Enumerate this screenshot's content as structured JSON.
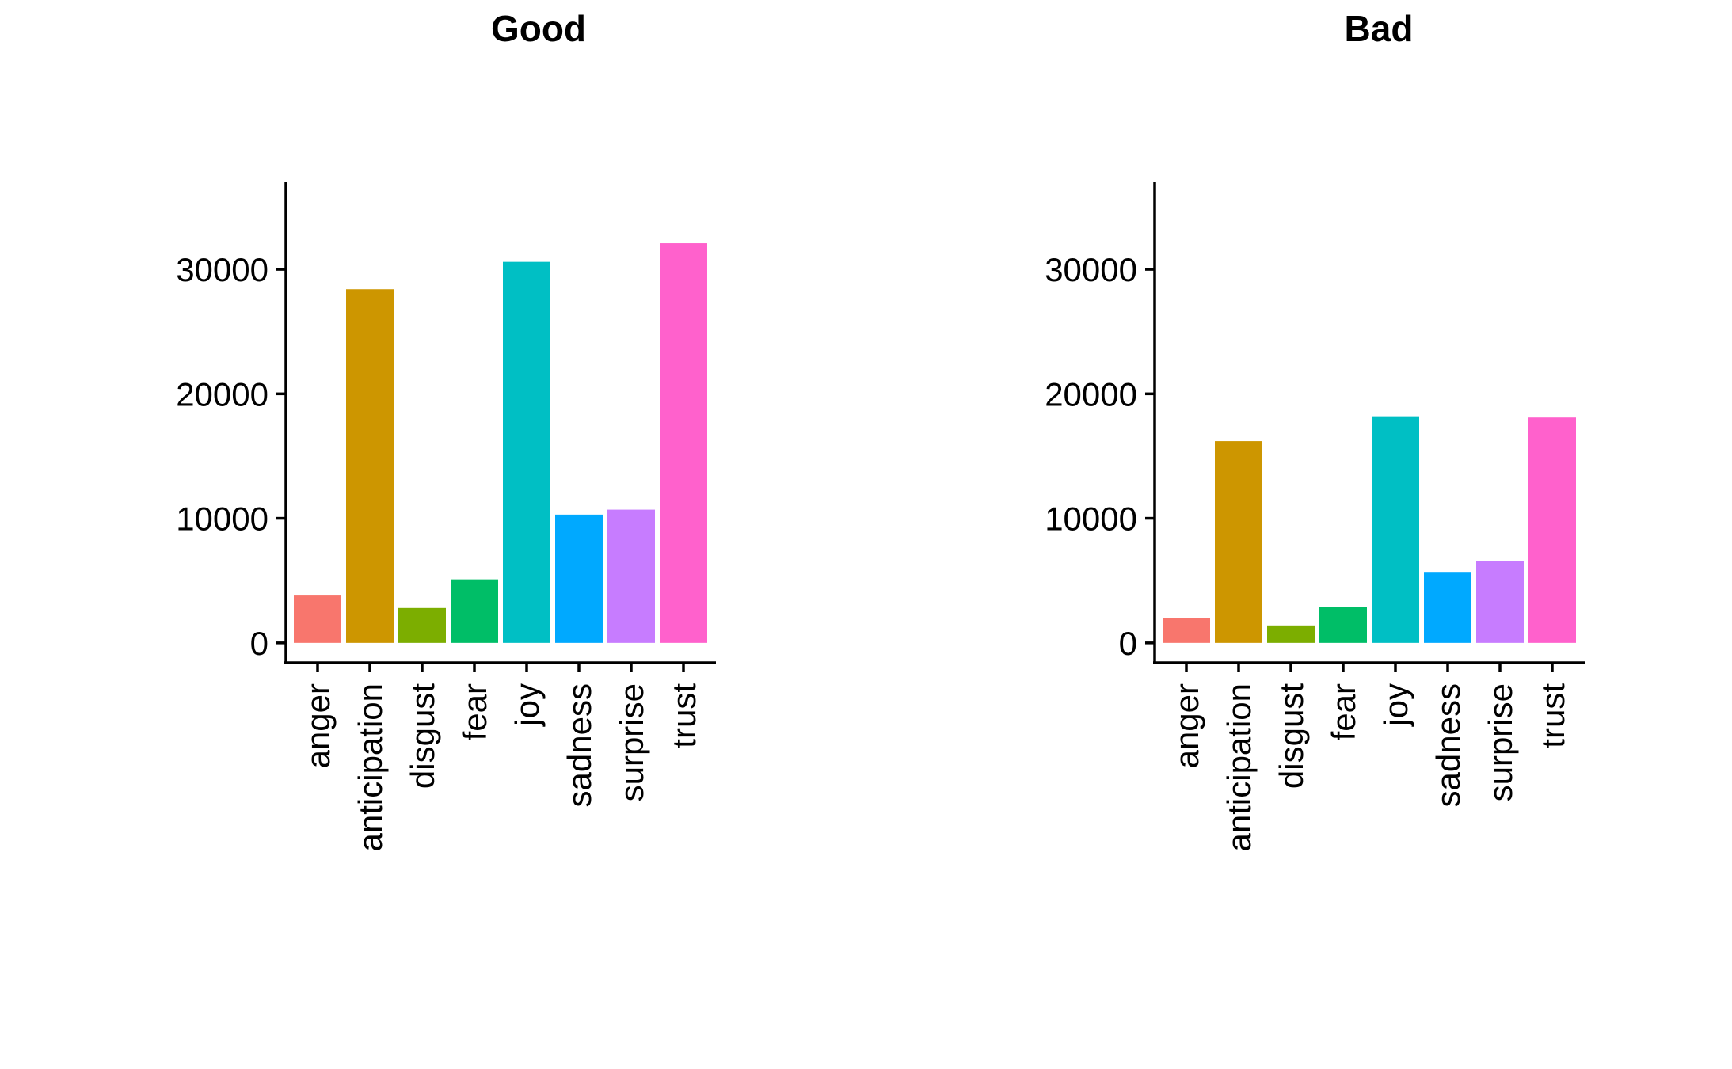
{
  "chart_data": [
    {
      "type": "bar",
      "title": "Good",
      "xlabel": "",
      "ylabel": "",
      "categories": [
        "anger",
        "anticipation",
        "disgust",
        "fear",
        "joy",
        "sadness",
        "surprise",
        "trust"
      ],
      "values": [
        3800,
        28400,
        2800,
        5100,
        30600,
        10300,
        10700,
        32100
      ],
      "ylim": [
        -1600,
        37000
      ],
      "yticks": [
        "0",
        "10000",
        "20000",
        "30000"
      ],
      "legend": "none",
      "grid": false
    },
    {
      "type": "bar",
      "title": "Bad",
      "xlabel": "",
      "ylabel": "",
      "categories": [
        "anger",
        "anticipation",
        "disgust",
        "fear",
        "joy",
        "sadness",
        "surprise",
        "trust"
      ],
      "values": [
        2000,
        16200,
        1400,
        2900,
        18200,
        5700,
        6600,
        18100
      ],
      "ylim": [
        -1600,
        37000
      ],
      "yticks": [
        "0",
        "10000",
        "20000",
        "30000"
      ],
      "legend": "none",
      "grid": false
    }
  ],
  "colors": {
    "anger": "#F8766D",
    "anticipation": "#CD9600",
    "disgust": "#7CAE00",
    "fear": "#00BE67",
    "joy": "#00BFC4",
    "sadness": "#00A9FF",
    "surprise": "#C77CFF",
    "trust": "#FF61CC"
  }
}
